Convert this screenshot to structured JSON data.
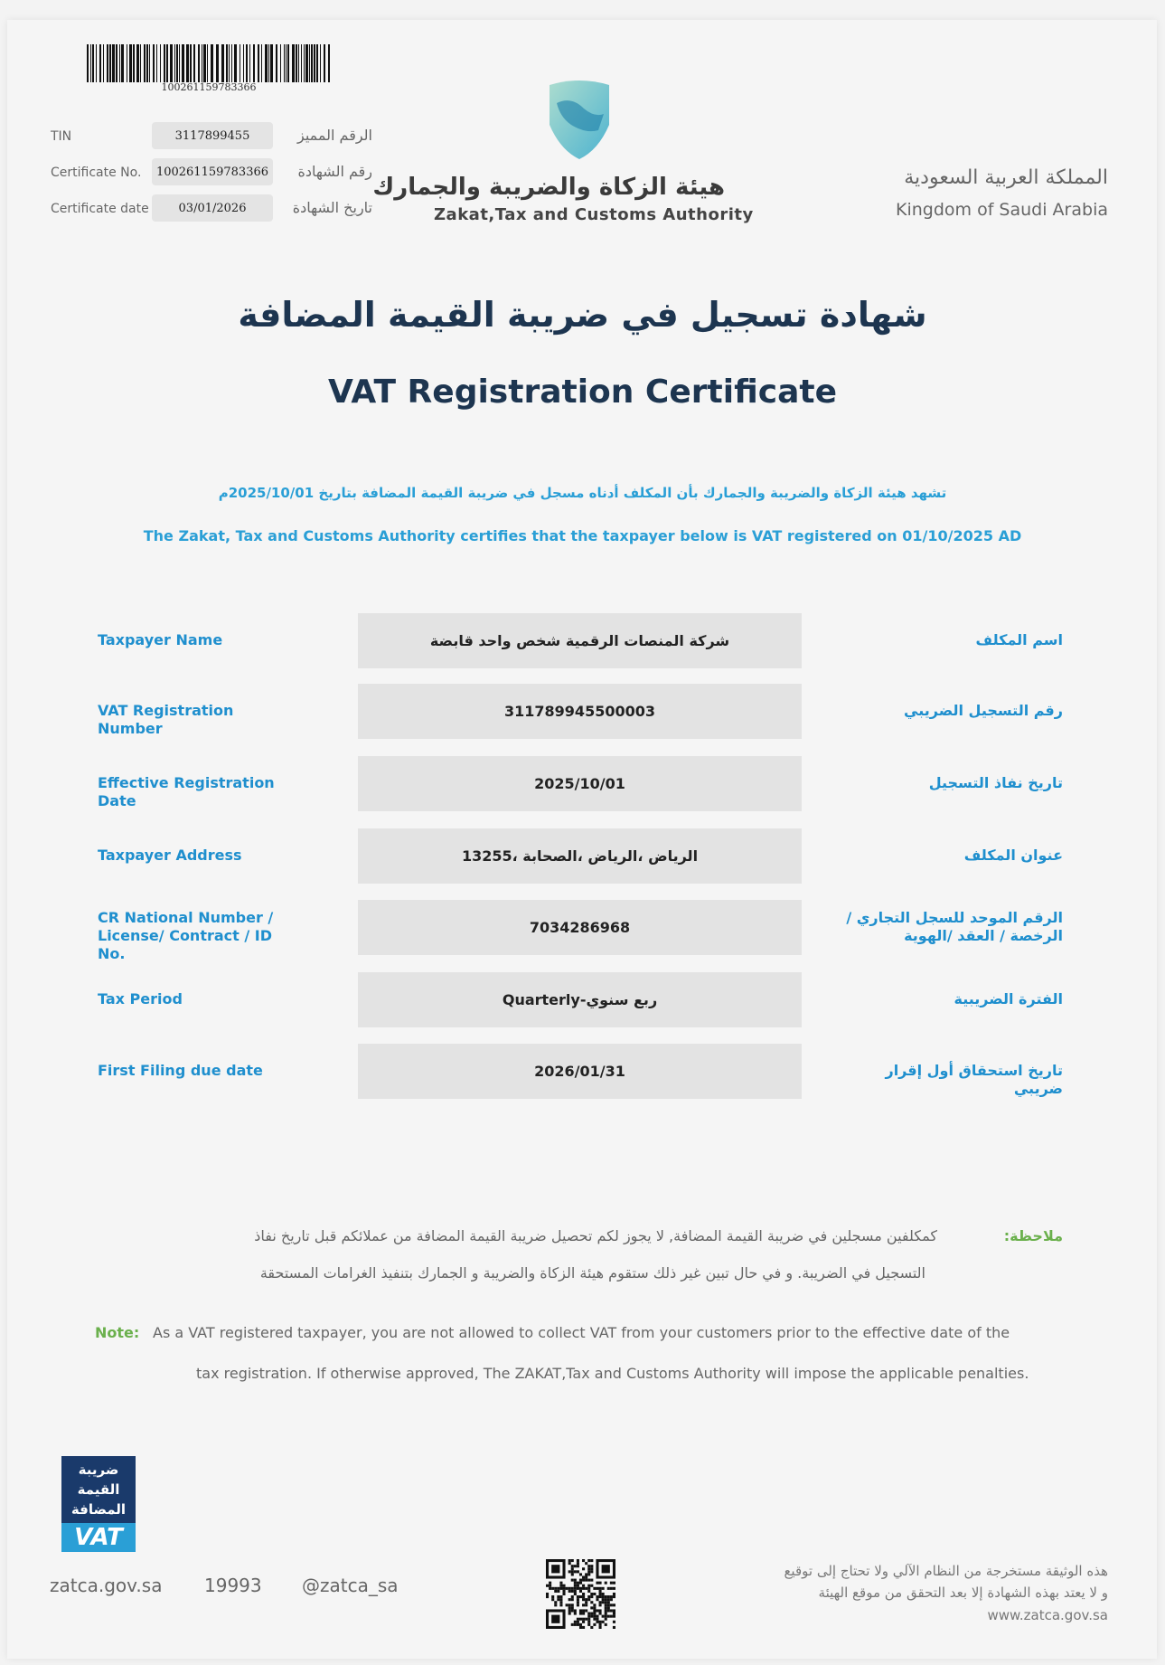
{
  "barcode": {
    "number": "100261159783366"
  },
  "header_fields": [
    {
      "en": "TIN",
      "value": "3117899455",
      "ar": "الرقم المميز"
    },
    {
      "en": "Certificate No.",
      "value": "100261159783366",
      "ar": "رقم الشهادة"
    },
    {
      "en": "Certificate date",
      "value": "03/01/2026",
      "ar": "تاريخ الشهادة"
    }
  ],
  "authority": {
    "name_ar": "هيئة الزكاة والضريبة والجمارك",
    "name_en": "Zakat,Tax and Customs Authority"
  },
  "kingdom": {
    "ar": "المملكة العربية السعودية",
    "en": "Kingdom of Saudi Arabia"
  },
  "title": {
    "ar": "شهادة تسجيل في ضريبة القيمة المضافة",
    "en": "VAT Registration Certificate"
  },
  "certify": {
    "ar": "تشهد هيئة الزكاة والضريبة والجمارك بأن المكلف أدناه مسجل في ضريبة القيمة المضافة بتاريخ 2025/10/01م",
    "en": "The Zakat, Tax and Customs Authority certifies that the taxpayer below is VAT registered on 01/10/2025 AD"
  },
  "rows": [
    {
      "en": "Taxpayer Name",
      "value": "شركة المنصات الرقمية شخص واحد قابضة",
      "ar": "اسم المكلف"
    },
    {
      "en": "VAT Registration Number",
      "value": "311789945500003",
      "ar": "رقم التسجيل الضريبي"
    },
    {
      "en": "Effective Registration Date",
      "value": "2025/10/01",
      "ar": "تاريخ نفاذ التسجيل"
    },
    {
      "en": "Taxpayer Address",
      "value": "الرياض ،الرياض ،الصحابة ،13255",
      "ar": "عنوان المكلف"
    },
    {
      "en": "CR National Number / License/ Contract / ID No.",
      "value": "7034286968",
      "ar": "الرقم الموحد للسجل التجاري / الرخصة / العقد /الهوية"
    },
    {
      "en": "Tax Period",
      "value": "Quarterly-ربع سنوي",
      "ar": "الفترة الضريبية"
    },
    {
      "en": "First Filing due date",
      "value": "2026/01/31",
      "ar": "تاريخ استحقاق أول إقرار ضريبي"
    }
  ],
  "note": {
    "ar_label": "ملاحظة:",
    "ar_line1": "كمكلفين مسجلين في ضريبة القيمة المضافة, لا يجوز لكم تحصيل ضريبة القيمة المضافة من عملائكم قبل تاريخ نفاذ",
    "ar_line2": "التسجيل في الضريبة. و في حال تبين غير ذلك ستقوم هيئة الزكاة والضريبة و الجمارك بتنفيذ الغرامات المستحقة",
    "en_label": "Note:",
    "en_line1": "As a VAT registered taxpayer, you are not allowed to collect VAT from your customers prior to the effective date of the",
    "en_line2": "tax registration. If otherwise approved, The ZAKAT,Tax and Customs Authority will impose the applicable penalties."
  },
  "vat_logo": {
    "ar": [
      "ضريبة",
      "القيمة",
      "المضافة"
    ],
    "en": "VAT"
  },
  "footer": {
    "website": "zatca.gov.sa",
    "phone": "19993",
    "handle": "@zatca_sa",
    "disclaimer": [
      "هذه الوثيقة مستخرجة من النظام الآلي ولا تحتاج إلى توقيع",
      "و لا يعتد بهذه الشهادة إلا بعد التحقق من موقع الهيئة",
      "www.zatca.gov.sa"
    ]
  },
  "colors": {
    "label_blue": "#1f8fce",
    "title_navy": "#1d3550",
    "note_green": "#6ab04c",
    "vat_navy": "#1a3a6b",
    "vat_blue": "#2a9fd6"
  }
}
